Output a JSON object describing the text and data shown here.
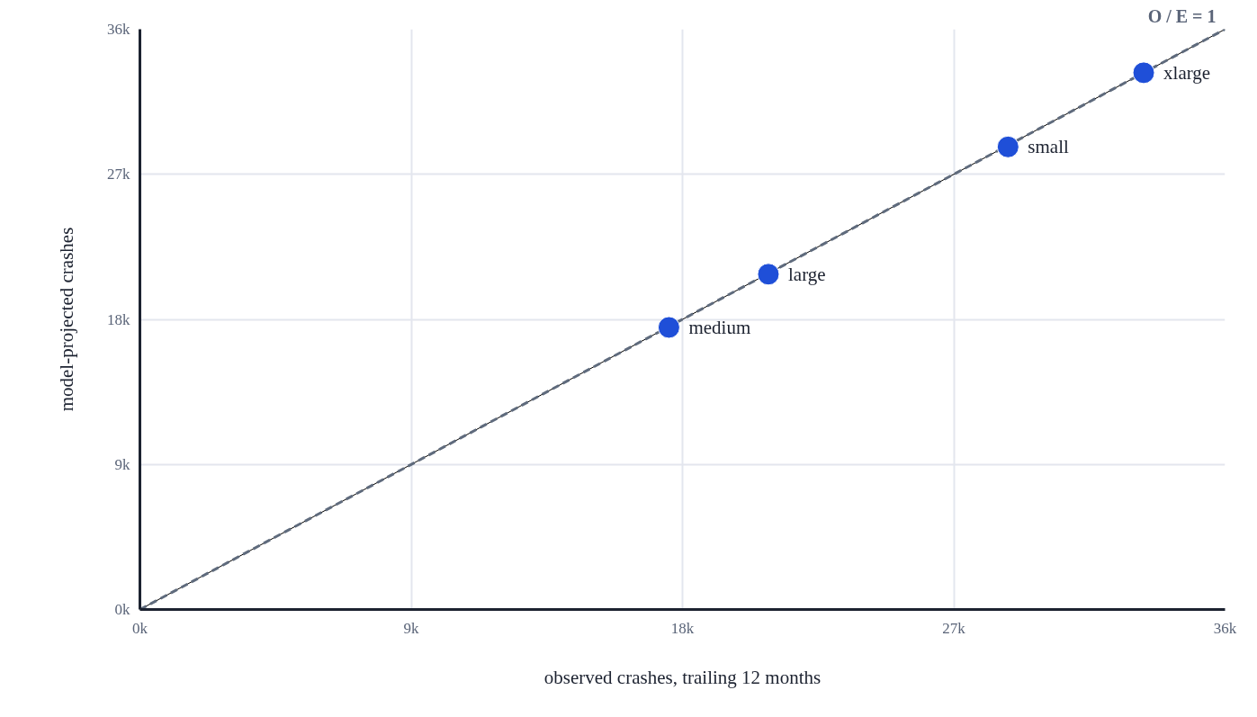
{
  "chart_data": {
    "type": "scatter",
    "xlabel": "observed crashes, trailing 12 months",
    "ylabel": "model-projected crashes",
    "xlim": [
      0,
      36000
    ],
    "ylim": [
      0,
      36000
    ],
    "xticks": [
      {
        "value": 0,
        "label": "0k"
      },
      {
        "value": 9000,
        "label": "9k"
      },
      {
        "value": 18000,
        "label": "18k"
      },
      {
        "value": 27000,
        "label": "27k"
      },
      {
        "value": 36000,
        "label": "36k"
      }
    ],
    "yticks": [
      {
        "value": 0,
        "label": "0k"
      },
      {
        "value": 9000,
        "label": "9k"
      },
      {
        "value": 18000,
        "label": "18k"
      },
      {
        "value": 27000,
        "label": "27k"
      },
      {
        "value": 36000,
        "label": "36k"
      }
    ],
    "grid": true,
    "series": [
      {
        "type": "line",
        "color": "#000000",
        "line_style": "solid",
        "x": [
          0,
          36000
        ],
        "values": [
          0,
          36000
        ]
      },
      {
        "type": "line",
        "color": "#5f6b7d",
        "line_style": "dashed",
        "x": [
          0,
          36000
        ],
        "values": [
          0,
          36000
        ]
      },
      {
        "type": "scatter",
        "marker": "circle",
        "color": "#1f4fd8",
        "x": [
          17550,
          20850,
          28800,
          33300
        ],
        "values": [
          17500,
          20800,
          28700,
          33300
        ]
      }
    ],
    "annotations": [
      {
        "text": "medium",
        "x": 17550,
        "y": 17500
      },
      {
        "text": "large",
        "x": 20850,
        "y": 20800
      },
      {
        "text": "small",
        "x": 28800,
        "y": 28700
      },
      {
        "text": "xlarge",
        "x": 33300,
        "y": 33300
      },
      {
        "text": "O / E = 1",
        "x": 36000,
        "y": 36000
      }
    ]
  }
}
